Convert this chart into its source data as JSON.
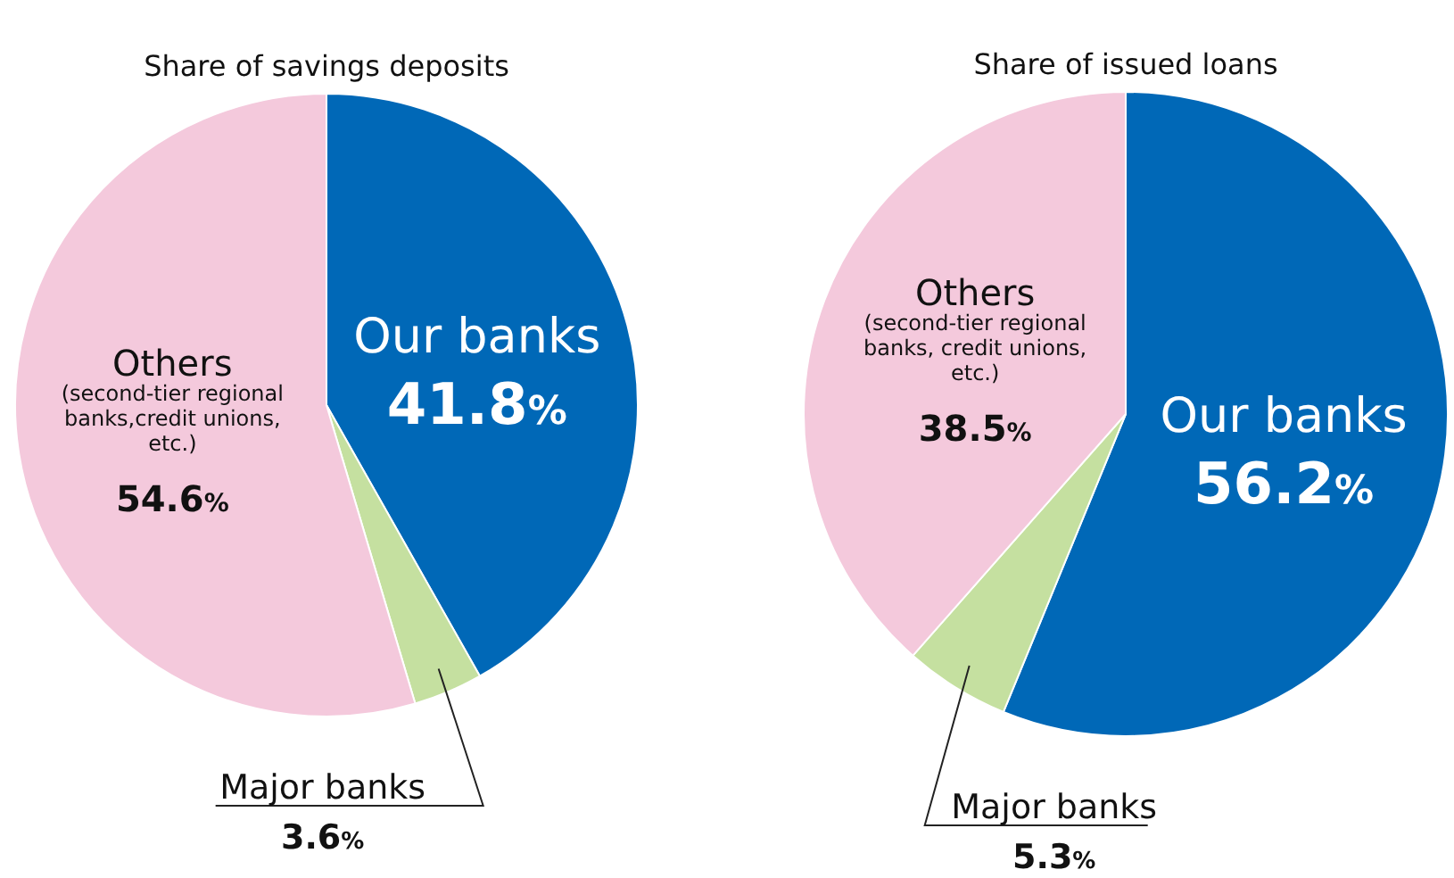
{
  "chart_data": [
    {
      "type": "pie",
      "title": "Share of savings deposits",
      "categories": [
        "Our banks",
        "Major banks",
        "Others (second-tier regional banks,credit unions, etc.)"
      ],
      "values": [
        41.8,
        3.6,
        54.6
      ],
      "value_labels": [
        "41.8%",
        "3.6%",
        "54.6%"
      ],
      "colors": [
        "#0068b7",
        "#c5e0a0",
        "#f4c9dc"
      ]
    },
    {
      "type": "pie",
      "title": "Share of issued loans",
      "categories": [
        "Our banks",
        "Major banks",
        "Others (second-tier regional banks, credit unions, etc.)"
      ],
      "values": [
        56.2,
        5.3,
        38.5
      ],
      "value_labels": [
        "56.2%",
        "5.3%",
        "38.5%"
      ],
      "colors": [
        "#0068b7",
        "#c5e0a0",
        "#f4c9dc"
      ]
    }
  ]
}
